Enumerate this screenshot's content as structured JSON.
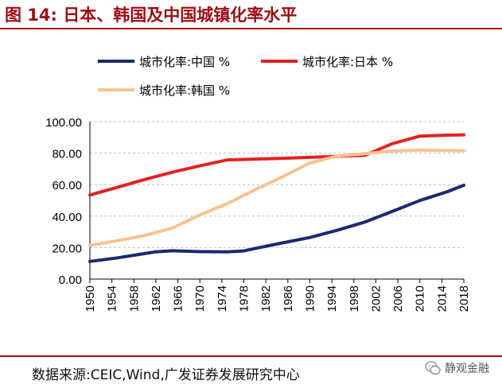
{
  "figure": {
    "title": "图 14:  日本、韩国及中国城镇化率水平",
    "source": "数据来源:CEIC,Wind,广发证券发展研究中心",
    "watermark": "静观金融"
  },
  "colors": {
    "china": "#1a2a6c",
    "japan": "#e32222",
    "korea": "#f7c390",
    "accent": "#9b0d14",
    "grid": "#bfbfbf"
  },
  "chart_data": {
    "type": "line",
    "title": "",
    "xlabel": "",
    "ylabel": "",
    "ylim": [
      0,
      100
    ],
    "xlim": [
      1950,
      2018
    ],
    "grid": true,
    "legend": "top",
    "yticks": [
      "0.00",
      "20.00",
      "40.00",
      "60.00",
      "80.00",
      "100.00"
    ],
    "xticks": [
      "1950",
      "1954",
      "1958",
      "1962",
      "1966",
      "1970",
      "1974",
      "1978",
      "1982",
      "1986",
      "1990",
      "1994",
      "1998",
      "2002",
      "2006",
      "2010",
      "2014",
      "2018"
    ],
    "series": [
      {
        "name": "城市化率:中国 %",
        "key": "china",
        "x": [
          1950,
          1955,
          1960,
          1962,
          1965,
          1970,
          1975,
          1978,
          1980,
          1985,
          1990,
          1995,
          2000,
          2005,
          2010,
          2015,
          2018
        ],
        "y": [
          11.2,
          13.5,
          16.2,
          17.3,
          18,
          17.4,
          17.3,
          17.9,
          19.4,
          23,
          26.4,
          31,
          36.2,
          43,
          49.9,
          55.5,
          59.6
        ]
      },
      {
        "name": "城市化率:日本 %",
        "key": "japan",
        "x": [
          1950,
          1955,
          1960,
          1965,
          1970,
          1975,
          1980,
          1985,
          1990,
          1995,
          2000,
          2005,
          2010,
          2015,
          2018
        ],
        "y": [
          53.4,
          58.3,
          63.3,
          67.9,
          71.9,
          75.7,
          76.2,
          76.7,
          77.3,
          78,
          78.6,
          86,
          90.8,
          91.4,
          91.6
        ]
      },
      {
        "name": "城市化率:韩国 %",
        "key": "korea",
        "x": [
          1950,
          1955,
          1960,
          1965,
          1970,
          1975,
          1980,
          1985,
          1990,
          1995,
          2000,
          2005,
          2010,
          2015,
          2018
        ],
        "y": [
          21.4,
          24.4,
          27.7,
          32.4,
          40.7,
          48,
          56.7,
          64.9,
          73.8,
          78.2,
          79.6,
          81.3,
          81.9,
          81.6,
          81.5
        ]
      }
    ]
  }
}
